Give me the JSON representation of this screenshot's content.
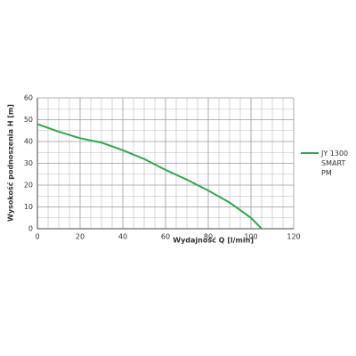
{
  "chart_data": {
    "type": "line",
    "xlabel": "Wydajność Q [l/min]",
    "ylabel": "Wysokość podnoszenia H [m]",
    "x": [
      0,
      10,
      20,
      30,
      40,
      50,
      60,
      70,
      80,
      90,
      100,
      105
    ],
    "series": [
      {
        "name": "JY 1300 SMART PM",
        "color": "#2ea84a",
        "values": [
          48,
          44.5,
          41.5,
          39.5,
          36,
          32,
          27,
          22.5,
          17.5,
          12,
          5,
          0
        ]
      }
    ],
    "xlim": [
      0,
      120
    ],
    "xticks": [
      0,
      20,
      40,
      60,
      80,
      100,
      120
    ],
    "ylim": [
      0,
      60
    ],
    "yticks": [
      0,
      10,
      20,
      30,
      40,
      50,
      60
    ],
    "minor_xticks": [
      5,
      10,
      15,
      25,
      30,
      35,
      45,
      50,
      55,
      65,
      70,
      75,
      85,
      90,
      95,
      105,
      110,
      115
    ],
    "minor_yticks": [
      5,
      15,
      25,
      35,
      45,
      55
    ],
    "grid": true,
    "legend": "right"
  }
}
